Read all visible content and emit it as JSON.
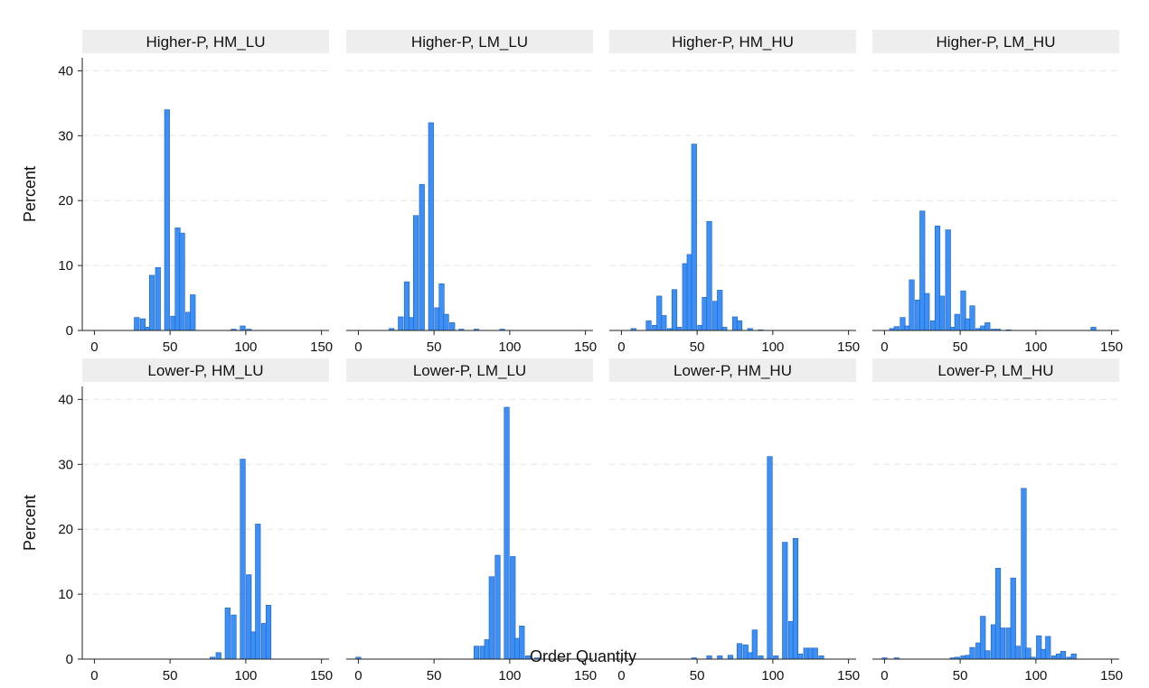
{
  "chart_data": {
    "type": "bar",
    "xlabel": "Order Quantity",
    "ylabel": "Percent",
    "xlim": [
      -8,
      155
    ],
    "ylim": [
      0,
      42
    ],
    "x_ticks": [
      0,
      50,
      100,
      150
    ],
    "y_ticks": [
      0,
      10,
      20,
      30,
      40
    ],
    "bin_width": 3.33,
    "bar_color": "#3b8ff5",
    "bar_edge_color": "#1f5fbf",
    "strip_color": "#eeeeee",
    "grid": "horizontal dashed",
    "panels": [
      {
        "title": "Higher-P, HM_LU",
        "bins": [
          {
            "x": 28,
            "y": 2.0
          },
          {
            "x": 32,
            "y": 1.8
          },
          {
            "x": 35,
            "y": 0.5
          },
          {
            "x": 38,
            "y": 8.5
          },
          {
            "x": 42,
            "y": 9.7
          },
          {
            "x": 48,
            "y": 34.0
          },
          {
            "x": 52,
            "y": 2.2
          },
          {
            "x": 55,
            "y": 15.8
          },
          {
            "x": 58,
            "y": 15.0
          },
          {
            "x": 62,
            "y": 2.8
          },
          {
            "x": 65,
            "y": 5.5
          },
          {
            "x": 92,
            "y": 0.2
          },
          {
            "x": 98,
            "y": 0.7
          },
          {
            "x": 102,
            "y": 0.2
          }
        ]
      },
      {
        "title": "Higher-P, LM_LU",
        "bins": [
          {
            "x": 22,
            "y": 0.3
          },
          {
            "x": 28,
            "y": 2.1
          },
          {
            "x": 32,
            "y": 7.5
          },
          {
            "x": 35,
            "y": 2.0
          },
          {
            "x": 38,
            "y": 17.7
          },
          {
            "x": 42,
            "y": 22.5
          },
          {
            "x": 48,
            "y": 32.0
          },
          {
            "x": 52,
            "y": 3.5
          },
          {
            "x": 55,
            "y": 7.2
          },
          {
            "x": 58,
            "y": 2.5
          },
          {
            "x": 62,
            "y": 1.2
          },
          {
            "x": 68,
            "y": 0.2
          },
          {
            "x": 78,
            "y": 0.2
          },
          {
            "x": 95,
            "y": 0.2
          }
        ]
      },
      {
        "title": "Higher-P, HM_HU",
        "bins": [
          {
            "x": 8,
            "y": 0.3
          },
          {
            "x": 18,
            "y": 1.5
          },
          {
            "x": 22,
            "y": 0.8
          },
          {
            "x": 25,
            "y": 5.3
          },
          {
            "x": 28,
            "y": 2.3
          },
          {
            "x": 32,
            "y": 0.3
          },
          {
            "x": 35,
            "y": 6.3
          },
          {
            "x": 38,
            "y": 0.5
          },
          {
            "x": 42,
            "y": 10.3
          },
          {
            "x": 45,
            "y": 11.7
          },
          {
            "x": 48,
            "y": 28.7
          },
          {
            "x": 52,
            "y": 0.8
          },
          {
            "x": 55,
            "y": 5.1
          },
          {
            "x": 58,
            "y": 16.8
          },
          {
            "x": 62,
            "y": 4.5
          },
          {
            "x": 65,
            "y": 6.2
          },
          {
            "x": 68,
            "y": 0.5
          },
          {
            "x": 75,
            "y": 2.1
          },
          {
            "x": 78,
            "y": 1.5
          },
          {
            "x": 85,
            "y": 0.3
          },
          {
            "x": 92,
            "y": 0.1
          }
        ]
      },
      {
        "title": "Higher-P, LM_HU",
        "bins": [
          {
            "x": 5,
            "y": 0.3
          },
          {
            "x": 8,
            "y": 0.6
          },
          {
            "x": 12,
            "y": 2.0
          },
          {
            "x": 15,
            "y": 0.7
          },
          {
            "x": 18,
            "y": 7.8
          },
          {
            "x": 22,
            "y": 4.7
          },
          {
            "x": 25,
            "y": 18.4
          },
          {
            "x": 28,
            "y": 5.7
          },
          {
            "x": 32,
            "y": 1.5
          },
          {
            "x": 35,
            "y": 16.1
          },
          {
            "x": 38,
            "y": 5.3
          },
          {
            "x": 42,
            "y": 15.5
          },
          {
            "x": 45,
            "y": 0.5
          },
          {
            "x": 48,
            "y": 2.5
          },
          {
            "x": 52,
            "y": 6.1
          },
          {
            "x": 55,
            "y": 1.8
          },
          {
            "x": 58,
            "y": 3.8
          },
          {
            "x": 62,
            "y": 0.3
          },
          {
            "x": 65,
            "y": 0.7
          },
          {
            "x": 68,
            "y": 1.2
          },
          {
            "x": 72,
            "y": 0.2
          },
          {
            "x": 75,
            "y": 0.2
          },
          {
            "x": 82,
            "y": 0.1
          },
          {
            "x": 138,
            "y": 0.5
          }
        ]
      },
      {
        "title": "Lower-P, HM_LU",
        "bins": [
          {
            "x": 78,
            "y": 0.3
          },
          {
            "x": 82,
            "y": 1.0
          },
          {
            "x": 88,
            "y": 7.9
          },
          {
            "x": 92,
            "y": 6.8
          },
          {
            "x": 98,
            "y": 30.8
          },
          {
            "x": 102,
            "y": 13.0
          },
          {
            "x": 105,
            "y": 4.2
          },
          {
            "x": 108,
            "y": 20.8
          },
          {
            "x": 112,
            "y": 5.5
          },
          {
            "x": 115,
            "y": 8.3
          }
        ]
      },
      {
        "title": "Lower-P, LM_LU",
        "bins": [
          {
            "x": 0,
            "y": 0.3
          },
          {
            "x": 78,
            "y": 2.0
          },
          {
            "x": 82,
            "y": 2.0
          },
          {
            "x": 85,
            "y": 3.0
          },
          {
            "x": 88,
            "y": 12.7
          },
          {
            "x": 92,
            "y": 16.0
          },
          {
            "x": 98,
            "y": 38.8
          },
          {
            "x": 102,
            "y": 15.8
          },
          {
            "x": 105,
            "y": 3.2
          },
          {
            "x": 108,
            "y": 5.1
          },
          {
            "x": 112,
            "y": 0.5
          },
          {
            "x": 118,
            "y": 0.2
          }
        ]
      },
      {
        "title": "Lower-P, HM_HU",
        "bins": [
          {
            "x": 48,
            "y": 0.2
          },
          {
            "x": 58,
            "y": 0.5
          },
          {
            "x": 65,
            "y": 0.5
          },
          {
            "x": 72,
            "y": 0.6
          },
          {
            "x": 78,
            "y": 2.4
          },
          {
            "x": 82,
            "y": 2.2
          },
          {
            "x": 85,
            "y": 1.0
          },
          {
            "x": 88,
            "y": 4.5
          },
          {
            "x": 92,
            "y": 0.5
          },
          {
            "x": 98,
            "y": 31.2
          },
          {
            "x": 102,
            "y": 0.5
          },
          {
            "x": 108,
            "y": 18.0
          },
          {
            "x": 112,
            "y": 5.8
          },
          {
            "x": 115,
            "y": 18.6
          },
          {
            "x": 118,
            "y": 0.8
          },
          {
            "x": 122,
            "y": 1.7
          },
          {
            "x": 125,
            "y": 1.7
          },
          {
            "x": 128,
            "y": 1.7
          },
          {
            "x": 132,
            "y": 0.5
          }
        ]
      },
      {
        "title": "Lower-P, LM_HU",
        "bins": [
          {
            "x": 0,
            "y": 0.2
          },
          {
            "x": 8,
            "y": 0.2
          },
          {
            "x": 45,
            "y": 0.2
          },
          {
            "x": 48,
            "y": 0.3
          },
          {
            "x": 52,
            "y": 0.5
          },
          {
            "x": 55,
            "y": 0.6
          },
          {
            "x": 58,
            "y": 1.8
          },
          {
            "x": 62,
            "y": 2.5
          },
          {
            "x": 65,
            "y": 6.6
          },
          {
            "x": 68,
            "y": 1.3
          },
          {
            "x": 72,
            "y": 5.3
          },
          {
            "x": 75,
            "y": 14.0
          },
          {
            "x": 78,
            "y": 4.8
          },
          {
            "x": 82,
            "y": 4.8
          },
          {
            "x": 85,
            "y": 12.5
          },
          {
            "x": 88,
            "y": 2.0
          },
          {
            "x": 92,
            "y": 26.3
          },
          {
            "x": 95,
            "y": 1.7
          },
          {
            "x": 98,
            "y": 0.3
          },
          {
            "x": 102,
            "y": 3.6
          },
          {
            "x": 105,
            "y": 1.5
          },
          {
            "x": 108,
            "y": 3.5
          },
          {
            "x": 112,
            "y": 0.5
          },
          {
            "x": 115,
            "y": 0.8
          },
          {
            "x": 118,
            "y": 1.2
          },
          {
            "x": 122,
            "y": 0.3
          },
          {
            "x": 125,
            "y": 0.8
          }
        ]
      }
    ]
  }
}
